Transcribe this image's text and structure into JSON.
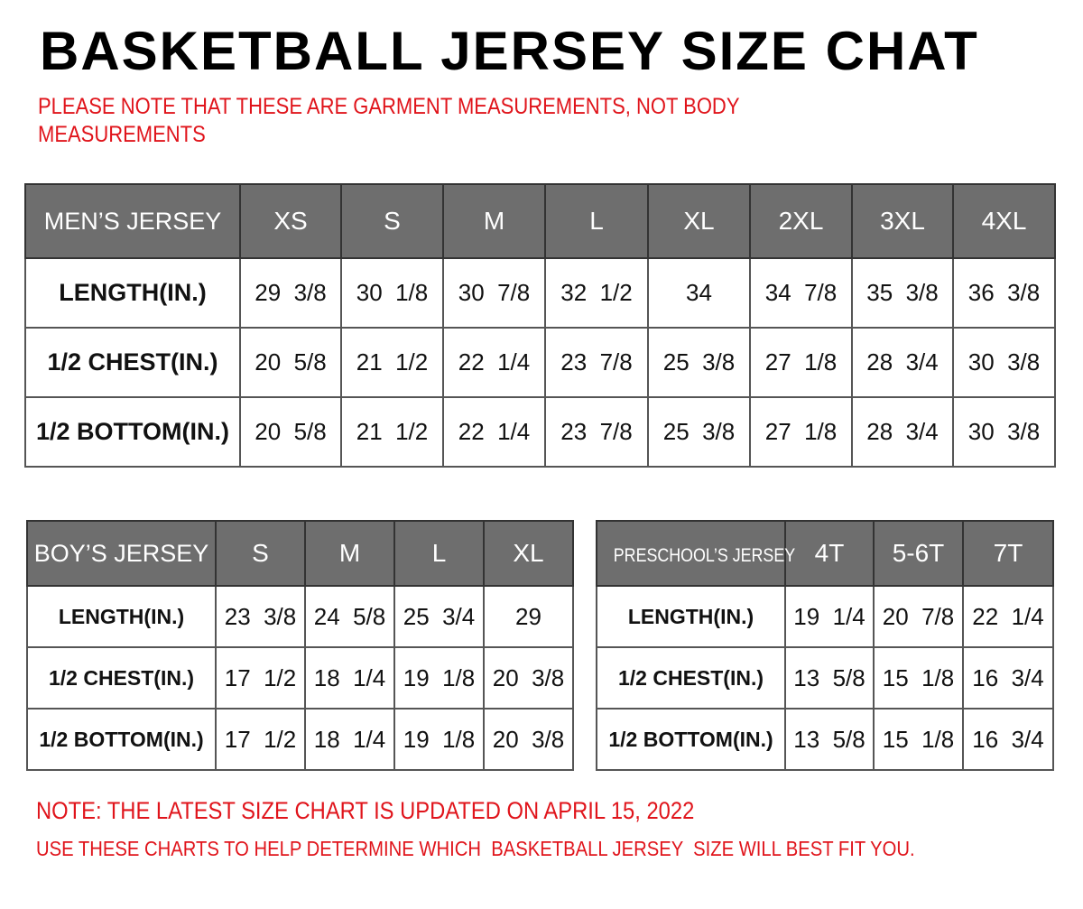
{
  "title": "BASKETBALL JERSEY SIZE CHAT",
  "note_top": "PLEASE NOTE THAT THESE ARE GARMENT MEASUREMENTS, NOT BODY MEASUREMENTS",
  "mens": {
    "header": "MEN’S JERSEY",
    "sizes": [
      "XS",
      "S",
      "M",
      "L",
      "XL",
      "2XL",
      "3XL",
      "4XL"
    ],
    "rows": [
      {
        "label": "LENGTH(IN.)",
        "values": [
          "29 3/8",
          "30 1/8",
          "30 7/8",
          "32 1/2",
          "34",
          "34 7/8",
          "35 3/8",
          "36 3/8"
        ]
      },
      {
        "label": "1/2 CHEST(IN.)",
        "values": [
          "20 5/8",
          "21 1/2",
          "22 1/4",
          "23 7/8",
          "25 3/8",
          "27 1/8",
          "28 3/4",
          "30 3/8"
        ]
      },
      {
        "label": "1/2 BOTTOM(IN.)",
        "values": [
          "20 5/8",
          "21 1/2",
          "22 1/4",
          "23 7/8",
          "25 3/8",
          "27 1/8",
          "28 3/4",
          "30 3/8"
        ]
      }
    ]
  },
  "boys": {
    "header": "BOY’S JERSEY",
    "sizes": [
      "S",
      "M",
      "L",
      "XL"
    ],
    "rows": [
      {
        "label": "LENGTH(IN.)",
        "values": [
          "23 3/8",
          "24 5/8",
          "25 3/4",
          "29"
        ]
      },
      {
        "label": "1/2 CHEST(IN.)",
        "values": [
          "17 1/2",
          "18 1/4",
          "19 1/8",
          "20 3/8"
        ]
      },
      {
        "label": "1/2 BOTTOM(IN.)",
        "values": [
          "17 1/2",
          "18 1/4",
          "19 1/8",
          "20 3/8"
        ]
      }
    ]
  },
  "preschool": {
    "header": "PRESCHOOL’S JERSEY",
    "sizes": [
      "4T",
      "5-6T",
      "7T"
    ],
    "rows": [
      {
        "label": "LENGTH(IN.)",
        "values": [
          "19 1/4",
          "20 7/8",
          "22 1/4"
        ]
      },
      {
        "label": "1/2 CHEST(IN.)",
        "values": [
          "13 5/8",
          "15 1/8",
          "16 3/4"
        ]
      },
      {
        "label": "1/2 BOTTOM(IN.)",
        "values": [
          "13 5/8",
          "15 1/8",
          "16 3/4"
        ]
      }
    ]
  },
  "note_updated": "NOTE: THE LATEST SIZE CHART IS UPDATED ON APRIL 15, 2022",
  "note_usage": "USE THESE CHARTS TO HELP DETERMINE WHICH  BASKETBALL JERSEY  SIZE WILL BEST FIT YOU.",
  "colors": {
    "header_bg": "#6e6e6e",
    "note_red": "#e0141b"
  }
}
